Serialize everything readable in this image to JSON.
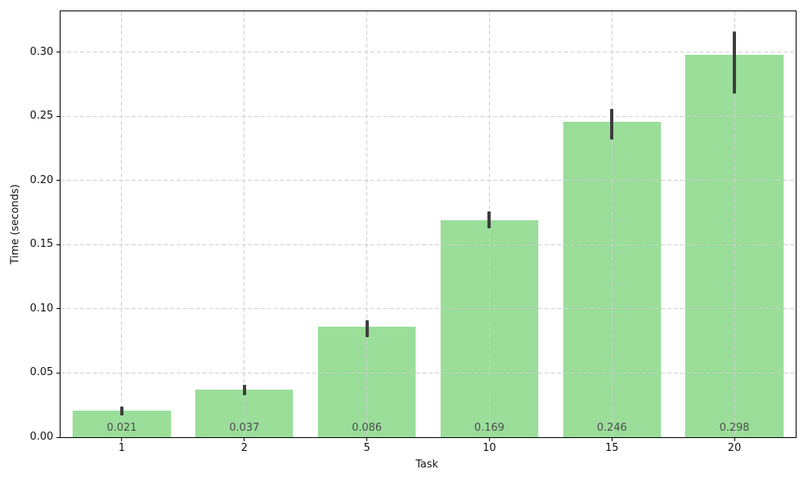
{
  "figure": {
    "background": "#ffffff"
  },
  "chart_data": {
    "type": "bar",
    "title": "",
    "xlabel": "Task",
    "ylabel": "Time (seconds)",
    "categories": [
      "1",
      "2",
      "5",
      "10",
      "15",
      "20"
    ],
    "values": [
      0.021,
      0.037,
      0.086,
      0.169,
      0.246,
      0.298
    ],
    "bar_value_labels": [
      "0.021",
      "0.037",
      "0.086",
      "0.169",
      "0.246",
      "0.298"
    ],
    "error_whiskers": [
      [
        0.017,
        0.024
      ],
      [
        0.033,
        0.041
      ],
      [
        0.078,
        0.091
      ],
      [
        0.163,
        0.176
      ],
      [
        0.232,
        0.256
      ],
      [
        0.268,
        0.316
      ]
    ],
    "yticks": [
      0.0,
      0.05,
      0.1,
      0.15,
      0.2,
      0.25,
      0.3
    ],
    "ytick_labels": [
      "0.00",
      "0.05",
      "0.10",
      "0.15",
      "0.20",
      "0.25",
      "0.30"
    ],
    "ylim": [
      0,
      0.332
    ],
    "bar_width_fraction": 0.8,
    "grid": "dashed, horizontal and vertical, drawn above bars",
    "legend_position": "none",
    "colors": {
      "bar_fill": "#9ade9a",
      "error_bar": "#3d3d3d",
      "grid": "#cfcfcf",
      "bar_label_text": "#4d4d4d",
      "axis_text": "#111111",
      "spine": "#000000"
    }
  }
}
